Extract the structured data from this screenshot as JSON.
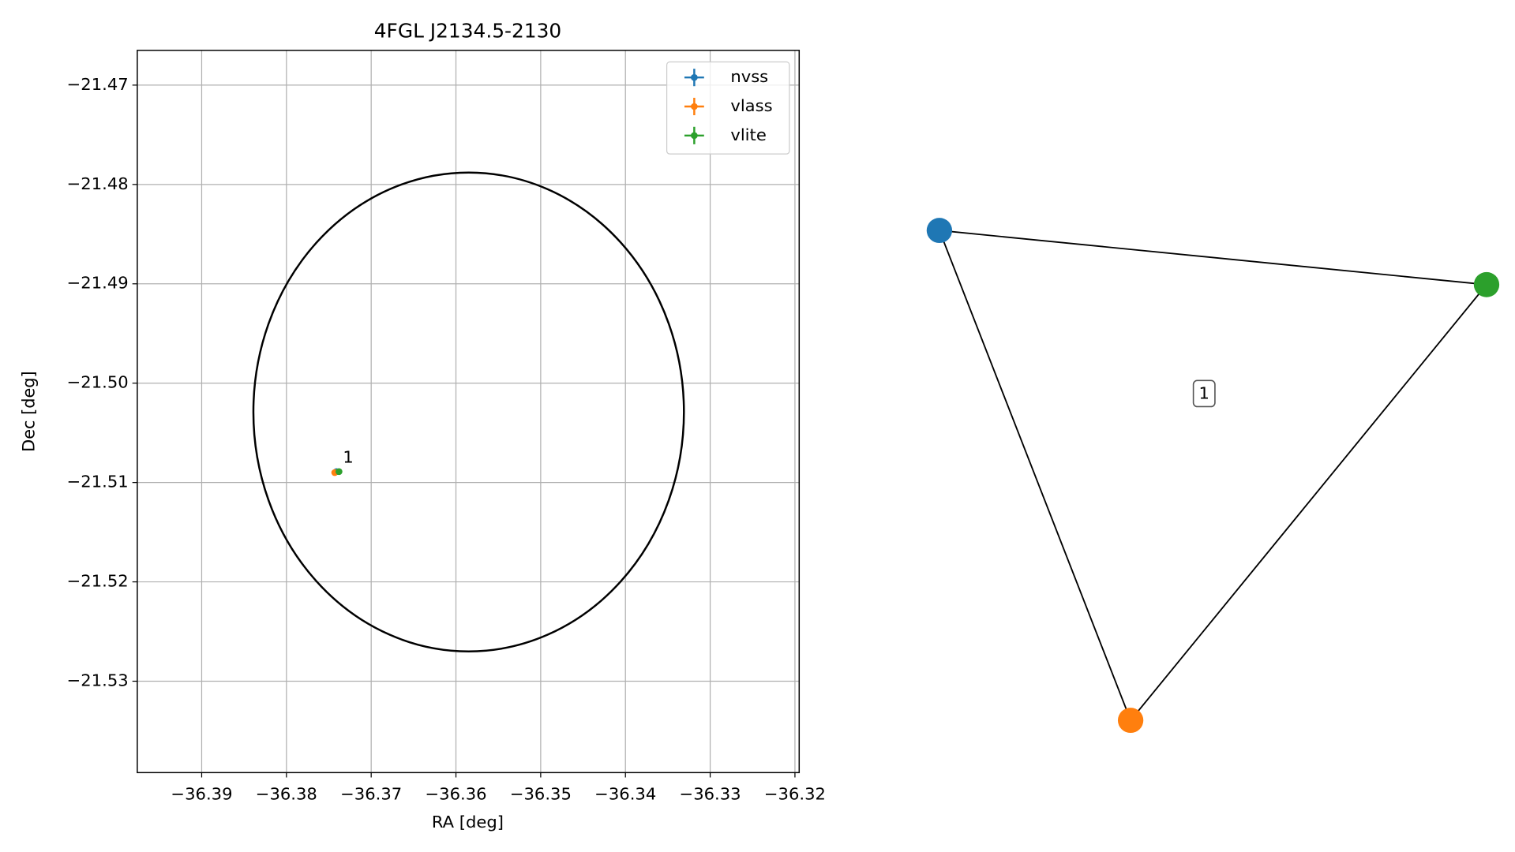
{
  "chart_data": {
    "type": "scatter",
    "title": "4FGL J2134.5-2130",
    "xlabel": "RA [deg]",
    "ylabel": "Dec [deg]",
    "xlim": [
      -36.3976,
      -36.3195
    ],
    "ylim": [
      -21.5392,
      -21.4665
    ],
    "xticks": [
      {
        "value": -36.39,
        "label": "−36.39"
      },
      {
        "value": -36.38,
        "label": "−36.38"
      },
      {
        "value": -36.37,
        "label": "−36.37"
      },
      {
        "value": -36.36,
        "label": "−36.36"
      },
      {
        "value": -36.35,
        "label": "−36.35"
      },
      {
        "value": -36.34,
        "label": "−36.34"
      },
      {
        "value": -36.33,
        "label": "−36.33"
      },
      {
        "value": -36.32,
        "label": "−36.32"
      }
    ],
    "yticks": [
      {
        "value": -21.47,
        "label": "−21.47"
      },
      {
        "value": -21.48,
        "label": "−21.48"
      },
      {
        "value": -21.49,
        "label": "−21.49"
      },
      {
        "value": -21.5,
        "label": "−21.50"
      },
      {
        "value": -21.51,
        "label": "−21.51"
      },
      {
        "value": -21.52,
        "label": "−21.52"
      },
      {
        "value": -21.53,
        "label": "−21.53"
      }
    ],
    "grid": true,
    "legend": "upper right",
    "series": [
      {
        "name": "nvss",
        "color": "#1f77b4",
        "x": [
          -36.3741
        ],
        "values": [
          -21.5089
        ]
      },
      {
        "name": "vlass",
        "color": "#ff7f0e",
        "x": [
          -36.3743
        ],
        "values": [
          -21.509
        ]
      },
      {
        "name": "vlite",
        "color": "#2ca02c",
        "x": [
          -36.3738
        ],
        "values": [
          -21.5089
        ]
      }
    ],
    "annotations": [
      {
        "text": "1",
        "x": -36.3741,
        "y": -21.5089
      }
    ],
    "ellipse": {
      "center": [
        -36.3585,
        -21.5029
      ],
      "width": 0.0508,
      "height": 0.0482,
      "color": "#000000"
    }
  },
  "graph": {
    "nodes": [
      {
        "color": "#1f77b4"
      },
      {
        "color": "#ff7f0e"
      },
      {
        "color": "#2ca02c"
      }
    ],
    "edges": [
      {
        "source": 0,
        "target": 1
      },
      {
        "source": 0,
        "target": 2
      },
      {
        "source": 1,
        "target": 2
      }
    ],
    "label": "1"
  }
}
